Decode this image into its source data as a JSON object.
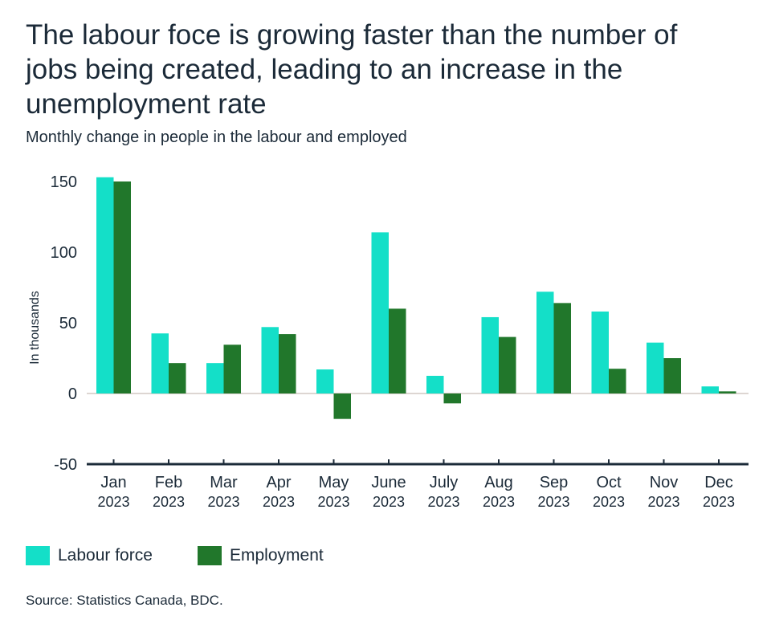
{
  "chart_data": {
    "type": "bar",
    "title": "The labour foce is growing faster than the number of jobs being created, leading to an increase in the unemployment rate",
    "subtitle": "Monthly change in people in the labour and employed",
    "ylabel": "In thousands",
    "xlabel": "",
    "ylim": [
      -50,
      150
    ],
    "yticks": [
      150,
      100,
      50,
      0,
      -50
    ],
    "categories": [
      {
        "month": "Jan",
        "year": "2023"
      },
      {
        "month": "Feb",
        "year": "2023"
      },
      {
        "month": "Mar",
        "year": "2023"
      },
      {
        "month": "Apr",
        "year": "2023"
      },
      {
        "month": "May",
        "year": "2023"
      },
      {
        "month": "June",
        "year": "2023"
      },
      {
        "month": "July",
        "year": "2023"
      },
      {
        "month": "Aug",
        "year": "2023"
      },
      {
        "month": "Sep",
        "year": "2023"
      },
      {
        "month": "Oct",
        "year": "2023"
      },
      {
        "month": "Nov",
        "year": "2023"
      },
      {
        "month": "Dec",
        "year": "2023"
      }
    ],
    "series": [
      {
        "name": "Labour force",
        "color": "#14dfc8",
        "values": [
          153,
          42.5,
          21.5,
          47,
          17,
          114,
          12.5,
          54,
          72,
          58,
          36,
          5
        ]
      },
      {
        "name": "Employment",
        "color": "#21772b",
        "values": [
          150,
          21.5,
          34.5,
          42,
          -18,
          60,
          -7,
          40,
          64,
          17.5,
          25,
          1.5
        ]
      }
    ],
    "grid": false,
    "legend": "bottom-left",
    "source": "Source: Statistics Canada, BDC."
  }
}
